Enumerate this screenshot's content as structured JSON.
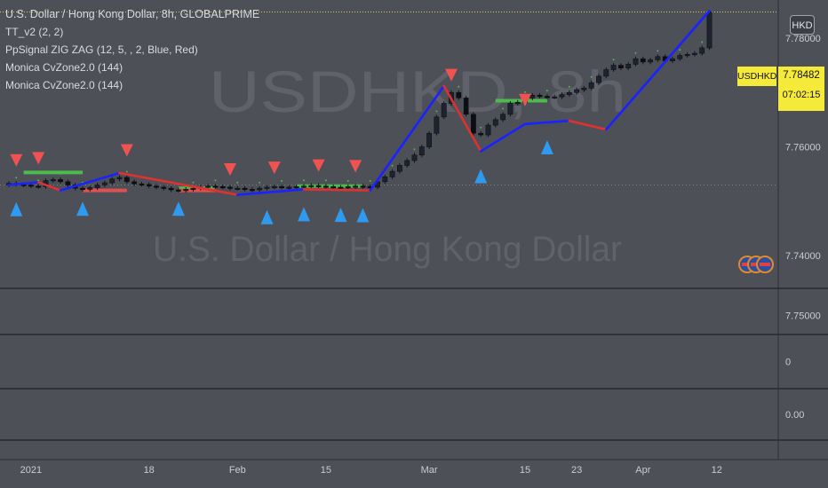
{
  "watermark": {
    "symbol_line": "USDHKD, 8h",
    "name_line": "U.S. Dollar / Hong Kong Dollar"
  },
  "legend": {
    "title": "U.S. Dollar / Hong Kong Dollar, 8h, GLOBALPRIME",
    "items": [
      "TT_v2 (2, 2)",
      "PpSignal ZIG ZAG (12, 5, , 2, Blue, Red)",
      "Monica CvZone2.0 (144)",
      "Monica CvZone2.0 (144)"
    ]
  },
  "currency_button": "HKD",
  "last_price": {
    "symbol": "USDHKD",
    "value": "7.78482",
    "countdown": "07:02:15"
  },
  "colors": {
    "background": "#4e5058",
    "up": "#1e2a38",
    "zigzag_up": "#1a22ff",
    "zigzag_down": "#e03030",
    "zone_green": "#4cbb4c",
    "zone_red": "#e05050",
    "arrow_down": "#f05252",
    "arrow_up": "#2e9bf0",
    "label_bg": "#f5e93a",
    "grid": "#2a2c31"
  },
  "chart_data": [
    {
      "type": "candlestick",
      "title": "U.S. Dollar / Hong Kong Dollar, 8h, GLOBALPRIME",
      "xlabel": "",
      "ylabel": "",
      "ylim": [
        7.734,
        7.787
      ],
      "y_ticks": [
        "7.78000",
        "7.76000",
        "7.74000"
      ],
      "x_ticks": [
        "2021",
        "18",
        "Feb",
        "15",
        "Mar",
        "15",
        "23",
        "Apr",
        "12"
      ],
      "x_tick_index": [
        3,
        19,
        31,
        43,
        57,
        70,
        77,
        86,
        96
      ],
      "close": [
        7.7533,
        7.7531,
        7.753,
        7.7528,
        7.7527,
        7.7538,
        7.754,
        7.7536,
        7.753,
        7.7524,
        7.7522,
        7.7525,
        7.753,
        7.7534,
        7.7541,
        7.7544,
        7.7536,
        7.7532,
        7.7531,
        7.7528,
        7.7526,
        7.7524,
        7.7521,
        7.752,
        7.7522,
        7.7524,
        7.7526,
        7.7528,
        7.7527,
        7.7526,
        7.7524,
        7.7524,
        7.7522,
        7.7521,
        7.7524,
        7.7526,
        7.7527,
        7.7526,
        7.7526,
        7.7527,
        7.7528,
        7.7529,
        7.7528,
        7.7527,
        7.7526,
        7.7525,
        7.7527,
        7.7528,
        7.7527,
        7.7526,
        7.7536,
        7.7545,
        7.7555,
        7.7566,
        7.7575,
        7.7585,
        7.76,
        7.7625,
        7.7655,
        7.768,
        7.77,
        7.769,
        7.766,
        7.7625,
        7.7622,
        7.764,
        7.765,
        7.766,
        7.768,
        7.7682,
        7.769,
        7.7695,
        7.7693,
        7.7692,
        7.7692,
        7.7696,
        7.77,
        7.7705,
        7.7708,
        7.7718,
        7.773,
        7.7742,
        7.775,
        7.7745,
        7.7752,
        7.7762,
        7.7756,
        7.776,
        7.7766,
        7.7758,
        7.7762,
        7.7768,
        7.777,
        7.7772,
        7.7782,
        7.7848
      ],
      "zigzag": [
        [
          0,
          7.753
        ],
        [
          4,
          7.7535
        ],
        [
          7,
          7.752
        ],
        [
          15,
          7.7552
        ],
        [
          31,
          7.7512
        ],
        [
          40,
          7.7522
        ],
        [
          49,
          7.752
        ],
        [
          59,
          7.7712
        ],
        [
          64,
          7.7592
        ],
        [
          70,
          7.7642
        ],
        [
          76,
          7.7648
        ],
        [
          81,
          7.7632
        ],
        [
          95,
          7.785
        ]
      ],
      "sell_signals": [
        1,
        4,
        16,
        30,
        36,
        42,
        47,
        60,
        70
      ],
      "buy_signals": [
        1,
        10,
        23,
        35,
        40,
        45,
        48,
        64,
        73
      ],
      "zones": [
        {
          "color": "green",
          "from": 2,
          "to": 10,
          "y": 7.7553
        },
        {
          "color": "red",
          "from": 10,
          "to": 16,
          "y": 7.752
        },
        {
          "color": "green",
          "from": 23,
          "to": 28,
          "y": 7.7524
        },
        {
          "color": "red",
          "from": 23,
          "to": 28,
          "y": 7.752
        },
        {
          "color": "green",
          "from": 39,
          "to": 48,
          "y": 7.7528
        },
        {
          "color": "green",
          "from": 66,
          "to": 73,
          "y": 7.7685
        }
      ]
    },
    {
      "type": "line",
      "name": "Monica CvZone2.0 (144)",
      "ylim": [
        7.7475,
        7.7535
      ],
      "y_ticks": [
        "7.75000"
      ]
    },
    {
      "type": "line",
      "name": "Monica CvZone2.0 (144)",
      "ylim": [
        -1,
        1
      ],
      "y_ticks": [
        "0"
      ]
    },
    {
      "type": "line",
      "name": "TT_v2 (2, 2)",
      "ylim": [
        -1,
        1
      ],
      "y_ticks": [
        "0.00"
      ]
    }
  ]
}
